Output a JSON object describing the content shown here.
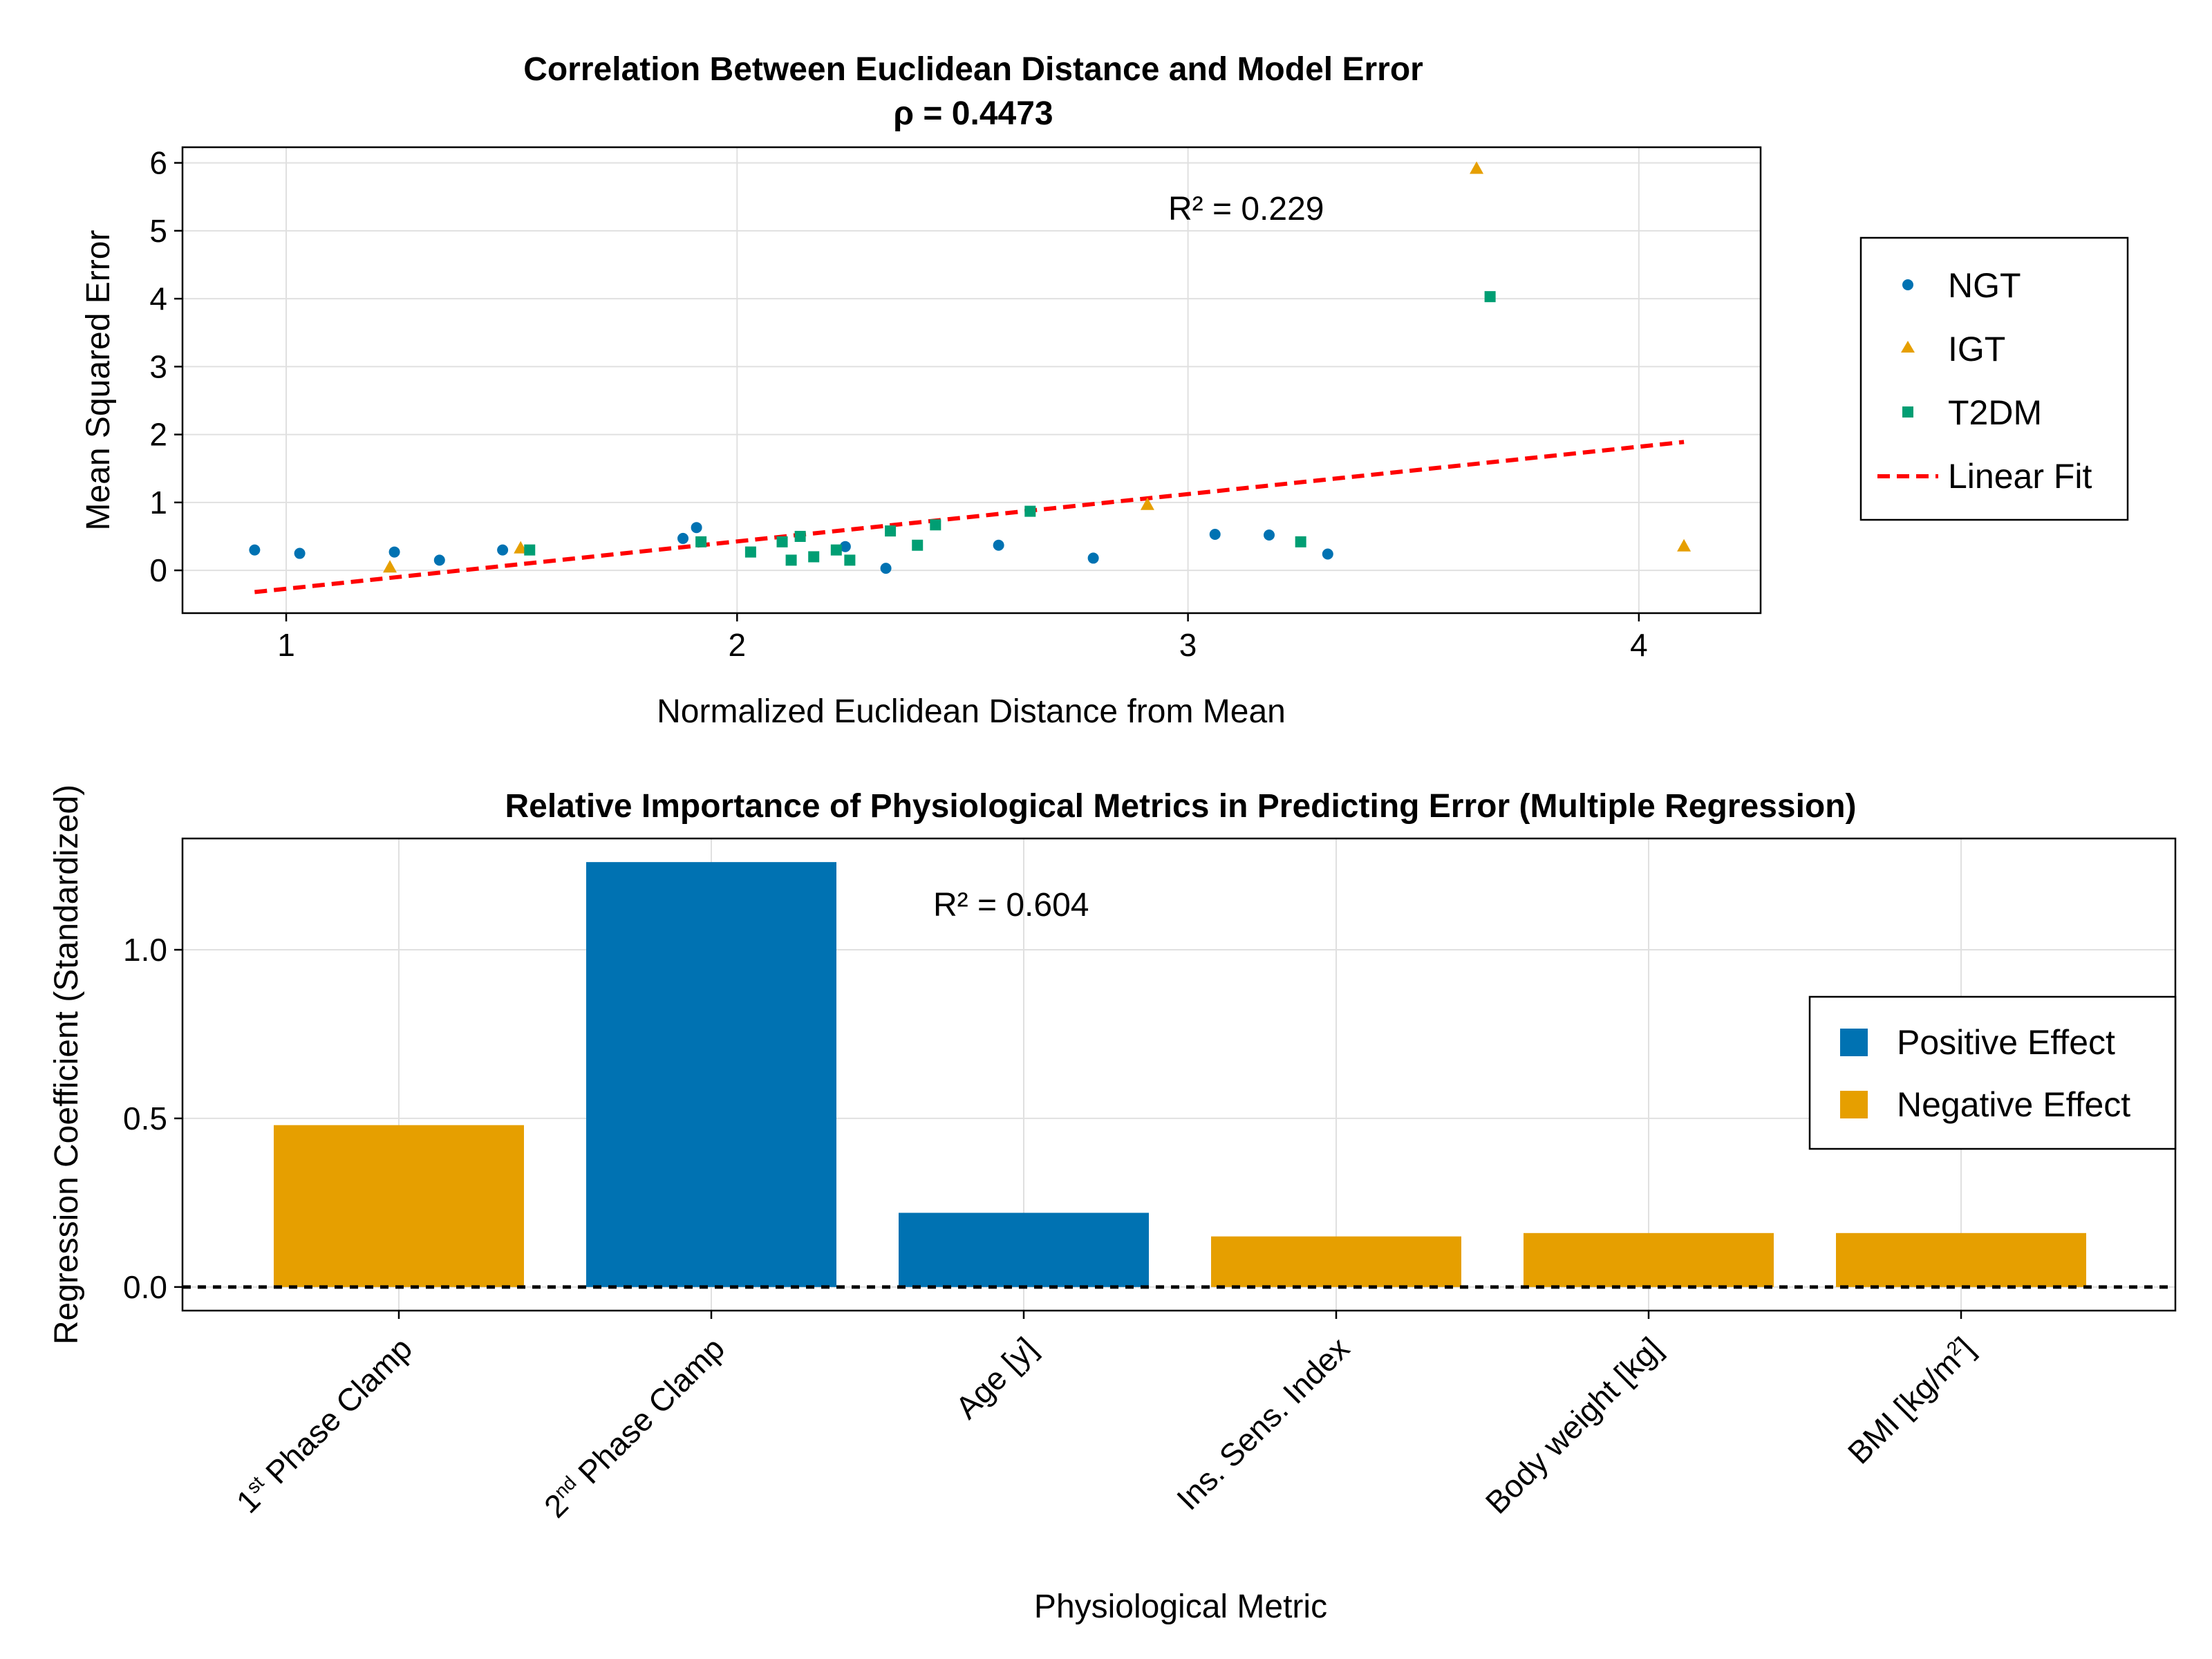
{
  "colors": {
    "ngt": "#0072b2",
    "igt": "#e69f00",
    "t2dm": "#009e73",
    "fit": "#ff0000",
    "positive": "#0072b2",
    "negative": "#e69f00"
  },
  "chart_data": [
    {
      "type": "scatter",
      "title": "Correlation Between Euclidean Distance and Model Error",
      "subtitle": "ρ = 0.4473",
      "xlabel": "Normalized Euclidean Distance from Mean",
      "ylabel": "Mean Squared Error",
      "xlim": [
        0.77,
        4.27
      ],
      "ylim": [
        -0.63,
        6.23
      ],
      "xticks": [
        1,
        2,
        3,
        4
      ],
      "yticks": [
        0,
        1,
        2,
        3,
        4,
        5,
        6
      ],
      "grid": true,
      "legend_position": "right",
      "annotation": "R² = 0.229",
      "series": [
        {
          "name": "NGT",
          "marker": "circle",
          "points": [
            [
              0.93,
              0.3
            ],
            [
              1.03,
              0.25
            ],
            [
              1.24,
              0.27
            ],
            [
              1.34,
              0.15
            ],
            [
              1.48,
              0.3
            ],
            [
              1.88,
              0.47
            ],
            [
              1.91,
              0.63
            ],
            [
              2.24,
              0.35
            ],
            [
              2.33,
              0.03
            ],
            [
              2.58,
              0.37
            ],
            [
              2.79,
              0.18
            ],
            [
              3.06,
              0.53
            ],
            [
              3.18,
              0.52
            ],
            [
              3.31,
              0.24
            ]
          ]
        },
        {
          "name": "IGT",
          "marker": "triangle",
          "points": [
            [
              1.23,
              0.05
            ],
            [
              1.52,
              0.33
            ],
            [
              2.91,
              0.97
            ],
            [
              3.64,
              5.92
            ],
            [
              4.1,
              0.36
            ]
          ]
        },
        {
          "name": "T2DM",
          "marker": "square",
          "points": [
            [
              1.54,
              0.3
            ],
            [
              1.92,
              0.42
            ],
            [
              2.03,
              0.27
            ],
            [
              2.1,
              0.42
            ],
            [
              2.12,
              0.15
            ],
            [
              2.14,
              0.5
            ],
            [
              2.17,
              0.2
            ],
            [
              2.22,
              0.3
            ],
            [
              2.25,
              0.15
            ],
            [
              2.34,
              0.58
            ],
            [
              2.4,
              0.37
            ],
            [
              2.44,
              0.67
            ],
            [
              2.65,
              0.87
            ],
            [
              3.25,
              0.42
            ],
            [
              3.67,
              4.03
            ]
          ]
        }
      ],
      "fit": {
        "name": "Linear Fit",
        "x": [
          0.93,
          4.1
        ],
        "y": [
          -0.32,
          1.89
        ]
      }
    },
    {
      "type": "bar",
      "title": "Relative Importance of Physiological Metrics in Predicting Error (Multiple Regression)",
      "xlabel": "Physiological Metric",
      "ylabel": "Regression Coefficient (Standardized)",
      "categories": [
        {
          "base": "1",
          "sup": "st",
          "rest": " Phase Clamp"
        },
        {
          "base": "2",
          "sup": "nd",
          "rest": " Phase Clamp"
        },
        {
          "base": "Age [y]",
          "sup": "",
          "rest": ""
        },
        {
          "base": "Ins. Sens. Index",
          "sup": "",
          "rest": ""
        },
        {
          "base": "Body weight [kg]",
          "sup": "",
          "rest": ""
        },
        {
          "base": "BMI [kg/m",
          "sup": "2",
          "rest": "]"
        }
      ],
      "values": [
        0.48,
        1.26,
        0.22,
        0.15,
        0.16,
        0.16
      ],
      "effect": [
        "negative",
        "positive",
        "positive",
        "negative",
        "negative",
        "negative"
      ],
      "ylim": [
        -0.07,
        1.33
      ],
      "yticks": [
        0.0,
        0.5,
        1.0
      ],
      "ytick_labels": [
        "0.0",
        "0.5",
        "1.0"
      ],
      "grid": true,
      "reference_line": 0,
      "legend_position": "right",
      "legend": [
        "Positive Effect",
        "Negative Effect"
      ],
      "annotation": "R² = 0.604"
    }
  ]
}
